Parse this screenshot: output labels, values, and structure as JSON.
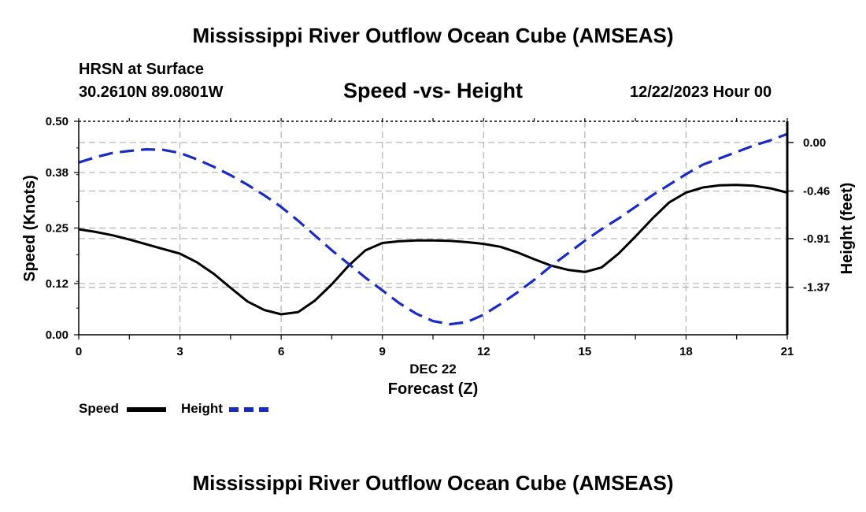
{
  "header": {
    "title": "Mississippi River Outflow Ocean Cube (AMSEAS)",
    "location_line": "HRSN at Surface",
    "coordinates": "30.2610N  89.0801W",
    "subtitle": "Speed -vs- Height",
    "date": "12/22/2023 Hour 00"
  },
  "footer": {
    "title": "Mississippi River Outflow Ocean Cube (AMSEAS)"
  },
  "legend": {
    "speed_label": "Speed",
    "height_label": "Height"
  },
  "chart_data": {
    "type": "line",
    "title": "Speed -vs- Height",
    "xlabel": "Forecast (Z)",
    "xlabel_date": "DEC 22",
    "ylabel_left": "Speed (Knots)",
    "ylabel_right": "Height (feet)",
    "xlim": [
      0,
      21
    ],
    "ylim_left": [
      0,
      0.5
    ],
    "ylim_right": [
      -1.82,
      0.2
    ],
    "x_ticks": [
      "0",
      "3",
      "6",
      "9",
      "12",
      "15",
      "18",
      "21"
    ],
    "y_left_ticks": [
      "0.00",
      "0.12",
      "0.25",
      "0.38",
      "0.50"
    ],
    "y_right_ticks": [
      "0.00",
      "-0.46",
      "-0.91",
      "-1.37"
    ],
    "colors": {
      "speed": "#000000",
      "height": "#1a2bc4",
      "grid": "#b0b0b0"
    },
    "series": [
      {
        "name": "Speed",
        "axis": "left",
        "x": [
          0,
          0.5,
          1,
          1.5,
          2,
          2.5,
          3,
          3.5,
          4,
          4.5,
          5,
          5.5,
          6,
          6.5,
          7,
          7.5,
          8,
          8.5,
          9,
          9.5,
          10,
          10.5,
          11,
          11.5,
          12,
          12.5,
          13,
          13.5,
          14,
          14.5,
          15,
          15.5,
          16,
          16.5,
          17,
          17.5,
          18,
          18.5,
          19,
          19.5,
          20,
          20.5,
          21
        ],
        "values": [
          0.247,
          0.241,
          0.233,
          0.223,
          0.212,
          0.201,
          0.19,
          0.17,
          0.143,
          0.11,
          0.078,
          0.058,
          0.048,
          0.053,
          0.08,
          0.118,
          0.162,
          0.198,
          0.215,
          0.219,
          0.221,
          0.221,
          0.22,
          0.217,
          0.213,
          0.206,
          0.193,
          0.177,
          0.162,
          0.152,
          0.147,
          0.158,
          0.19,
          0.23,
          0.272,
          0.31,
          0.333,
          0.345,
          0.35,
          0.351,
          0.349,
          0.343,
          0.333
        ]
      },
      {
        "name": "Height",
        "axis": "right",
        "x": [
          0,
          0.5,
          1,
          1.5,
          2,
          2.5,
          3,
          3.5,
          4,
          4.5,
          5,
          5.5,
          6,
          6.5,
          7,
          7.5,
          8,
          8.5,
          9,
          9.5,
          10,
          10.5,
          11,
          11.5,
          12,
          12.5,
          13,
          13.5,
          14,
          14.5,
          15,
          15.5,
          16,
          16.5,
          17,
          17.5,
          18,
          18.5,
          19,
          19.5,
          20,
          20.5,
          21
        ],
        "values": [
          -0.19,
          -0.14,
          -0.1,
          -0.08,
          -0.065,
          -0.07,
          -0.1,
          -0.16,
          -0.23,
          -0.31,
          -0.4,
          -0.5,
          -0.61,
          -0.74,
          -0.88,
          -1.02,
          -1.15,
          -1.28,
          -1.4,
          -1.52,
          -1.62,
          -1.69,
          -1.72,
          -1.7,
          -1.63,
          -1.53,
          -1.42,
          -1.3,
          -1.17,
          -1.05,
          -0.93,
          -0.82,
          -0.72,
          -0.61,
          -0.5,
          -0.4,
          -0.3,
          -0.21,
          -0.15,
          -0.09,
          -0.03,
          0.02,
          0.08
        ]
      }
    ]
  }
}
